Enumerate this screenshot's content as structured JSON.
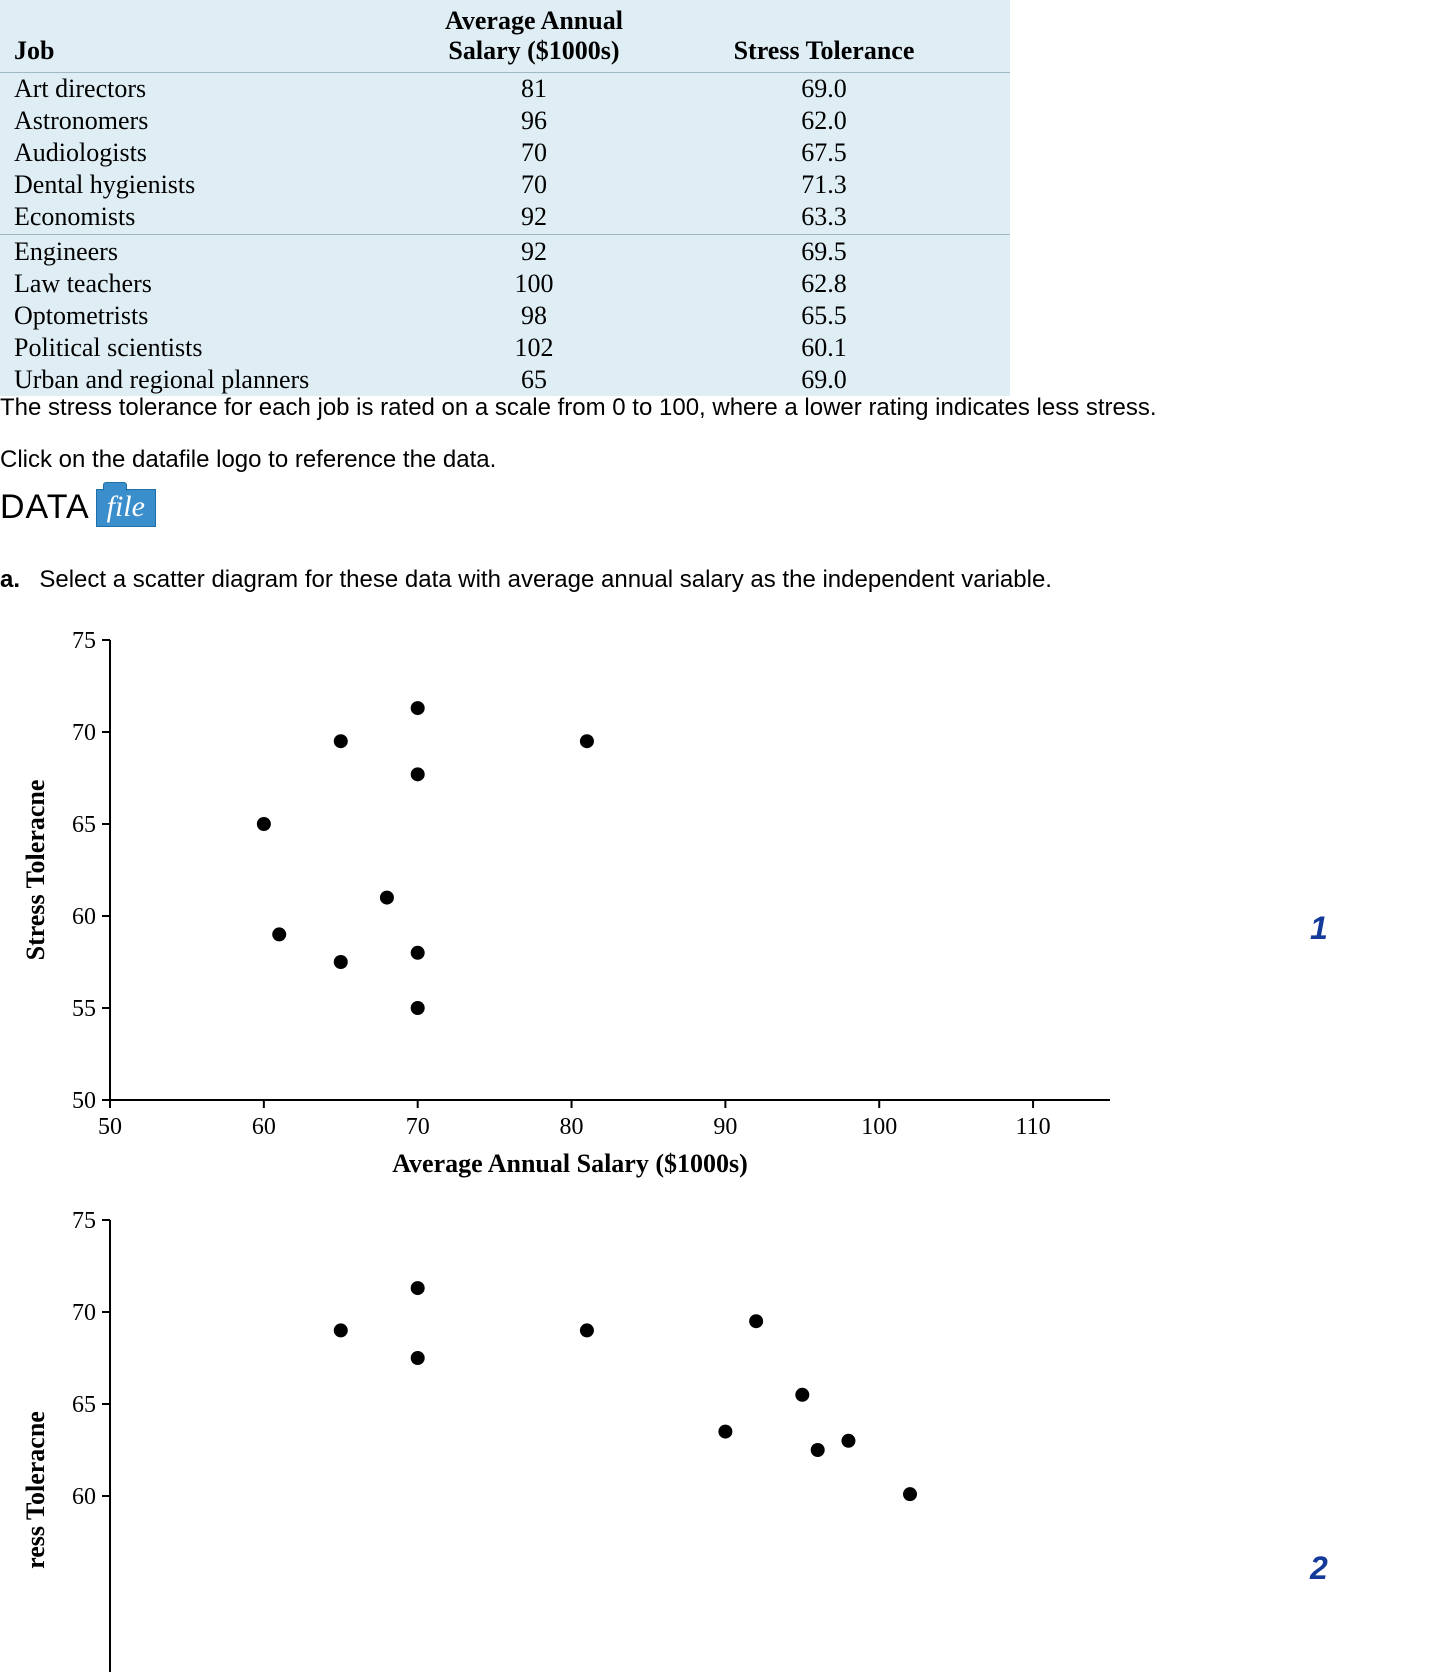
{
  "table": {
    "background_color": "#dfeef5",
    "font_family": "Times New Roman",
    "header_fontsize": 26,
    "row_fontsize": 26,
    "columns": {
      "job": "Job",
      "salary_line1": "Average Annual",
      "salary_line2": "Salary ($1000s)",
      "stress": "Stress Tolerance"
    },
    "rows": [
      {
        "job": "Art directors",
        "salary": "81",
        "stress": "69.0"
      },
      {
        "job": "Astronomers",
        "salary": "96",
        "stress": "62.0"
      },
      {
        "job": "Audiologists",
        "salary": "70",
        "stress": "67.5"
      },
      {
        "job": "Dental hygienists",
        "salary": "70",
        "stress": "71.3"
      },
      {
        "job": "Economists",
        "salary": "92",
        "stress": "63.3"
      },
      {
        "job": "Engineers",
        "salary": "92",
        "stress": "69.5"
      },
      {
        "job": "Law teachers",
        "salary": "100",
        "stress": "62.8"
      },
      {
        "job": "Optometrists",
        "salary": "98",
        "stress": "65.5"
      },
      {
        "job": "Political scientists",
        "salary": "102",
        "stress": "60.1"
      },
      {
        "job": "Urban and regional planners",
        "salary": "65",
        "stress": "69.0"
      }
    ],
    "divider_after_index": 4
  },
  "paragraphs": {
    "scale_note": "The stress tolerance for each job is rated on a scale from 0 to 100, where a lower rating indicates less stress.",
    "click_note": "Click on the datafile logo to reference the data.",
    "part_a_prefix": "a.",
    "part_a_text": "Select a scatter diagram for these data with average annual salary as the independent variable."
  },
  "datafile_logo": {
    "data_text": "DATA",
    "file_text": "file",
    "badge_color": "#3a8ecb",
    "text_color": "#ffffff"
  },
  "chart_labels": {
    "option1": "1",
    "option2": "2",
    "color": "#143a9a",
    "fontsize": 32
  },
  "scatter1": {
    "type": "scatter",
    "xlim": [
      50,
      115
    ],
    "ylim": [
      50,
      75
    ],
    "xticks": [
      50,
      60,
      70,
      80,
      90,
      100,
      110
    ],
    "yticks": [
      50,
      55,
      60,
      65,
      70,
      75
    ],
    "xlabel": "Average Annual Salary ($1000s)",
    "ylabel": "Stress Toleracne",
    "label_fontsize": 26,
    "tick_fontsize": 24,
    "marker_color": "#000000",
    "marker_radius": 7,
    "axis_color": "#000000",
    "background_color": "#ffffff",
    "points": [
      {
        "x": 60,
        "y": 65.0
      },
      {
        "x": 61,
        "y": 59.0
      },
      {
        "x": 65,
        "y": 57.5
      },
      {
        "x": 65,
        "y": 69.5
      },
      {
        "x": 68,
        "y": 61.0
      },
      {
        "x": 70,
        "y": 71.3
      },
      {
        "x": 70,
        "y": 67.7
      },
      {
        "x": 70,
        "y": 58.0
      },
      {
        "x": 70,
        "y": 55.0
      },
      {
        "x": 81,
        "y": 69.5
      }
    ]
  },
  "scatter2": {
    "type": "scatter",
    "xlim": [
      50,
      115
    ],
    "ylim": [
      50,
      75
    ],
    "yticks_visible": [
      60,
      65,
      70,
      75
    ],
    "ylabel": "ress Toleracne",
    "label_fontsize": 26,
    "tick_fontsize": 24,
    "marker_color": "#000000",
    "marker_radius": 7,
    "axis_color": "#000000",
    "background_color": "#ffffff",
    "points": [
      {
        "x": 65,
        "y": 69.0
      },
      {
        "x": 70,
        "y": 71.3
      },
      {
        "x": 70,
        "y": 67.5
      },
      {
        "x": 81,
        "y": 69.0
      },
      {
        "x": 90,
        "y": 63.5
      },
      {
        "x": 92,
        "y": 69.5
      },
      {
        "x": 95,
        "y": 65.5
      },
      {
        "x": 96,
        "y": 62.5
      },
      {
        "x": 98,
        "y": 63.0
      },
      {
        "x": 102,
        "y": 60.1
      }
    ]
  }
}
